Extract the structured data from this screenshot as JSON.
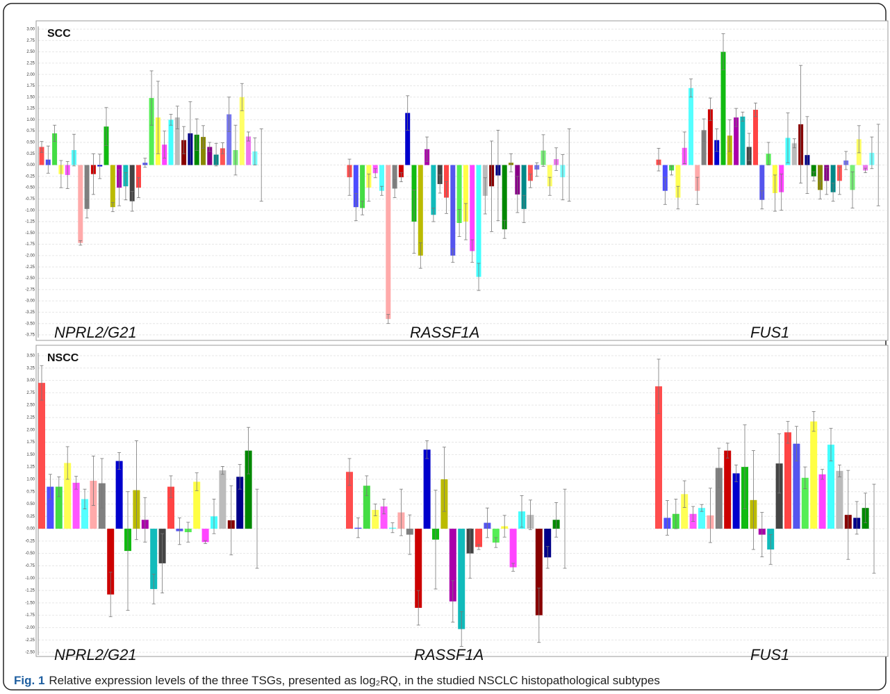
{
  "chart_data": [
    {
      "type": "bar",
      "panel_label": "SCC",
      "grid": true,
      "ylim": [
        -3.75,
        3.0
      ],
      "yticks": [
        {
          "value": 3.0,
          "label": "3.00"
        },
        {
          "value": 2.75,
          "label": "2.75"
        },
        {
          "value": 2.5,
          "label": "2.50"
        },
        {
          "value": 2.25,
          "label": "2.25"
        },
        {
          "value": 2.0,
          "label": "2.00"
        },
        {
          "value": 1.75,
          "label": "1.75"
        },
        {
          "value": 1.5,
          "label": "1.50"
        },
        {
          "value": 1.25,
          "label": "1.25"
        },
        {
          "value": 1.0,
          "label": "1.00"
        },
        {
          "value": 0.75,
          "label": "0.75"
        },
        {
          "value": 0.5,
          "label": "0.50"
        },
        {
          "value": 0.25,
          "label": "0.25"
        },
        {
          "value": 0,
          "label": "0.00"
        },
        {
          "value": -0.25,
          "label": "-0.25"
        },
        {
          "value": -0.5,
          "label": "-0.50"
        },
        {
          "value": -0.75,
          "label": "-0.75"
        },
        {
          "value": -1.0,
          "label": "-1.00"
        },
        {
          "value": -1.25,
          "label": "-1.25"
        },
        {
          "value": -1.5,
          "label": "-1.50"
        },
        {
          "value": -1.75,
          "label": "-1.75"
        },
        {
          "value": -2.0,
          "label": "-2.00"
        },
        {
          "value": -2.25,
          "label": "-2.25"
        },
        {
          "value": -2.5,
          "label": "-2.50"
        },
        {
          "value": -2.75,
          "label": "-2.75"
        },
        {
          "value": -3.0,
          "label": "-3.00"
        },
        {
          "value": -3.25,
          "label": "-3.25"
        },
        {
          "value": -3.5,
          "label": "-3.50"
        },
        {
          "value": -3.75,
          "label": "-3.75"
        }
      ],
      "colors": [
        "#ff4d4d",
        "#4d4dff",
        "#44dd44",
        "#ffff55",
        "#ff55ff",
        "#55ffff",
        "#ffaaaa",
        "#808080",
        "#cc0000",
        "#0000cc",
        "#11bb11",
        "#bbbb00",
        "#aa00aa",
        "#11bbbb",
        "#444444",
        "#ff4444",
        "#5555ee",
        "#55ee55",
        "#ffff44",
        "#ff44ff",
        "#44ffff",
        "#bbbbbb",
        "#880000",
        "#000088",
        "#008800",
        "#888800",
        "#880088",
        "#008888",
        "#ff5555",
        "#7777ee",
        "#77ee77",
        "#ffff66",
        "#ee77ee",
        "#77ffff",
        "#808080"
      ],
      "groups": [
        {
          "name": "NPRL2/G21",
          "values": [
            0.4,
            0.12,
            0.7,
            -0.2,
            -0.22,
            0.33,
            -1.72,
            -0.97,
            -0.2,
            -0.03,
            0.85,
            -0.93,
            -0.5,
            -0.47,
            -0.8,
            -0.5,
            0.05,
            1.48,
            1.05,
            0.45,
            1.0,
            1.05,
            0.55,
            0.7,
            0.67,
            0.62,
            0.4,
            0.23,
            0.37,
            1.12,
            0.33,
            1.5,
            0.63,
            0.3,
            0
          ],
          "errors": [
            0.12,
            0.3,
            0.18,
            0.3,
            0.3,
            0.35,
            0.05,
            0.2,
            0.45,
            0.27,
            0.42,
            0.1,
            0.4,
            0.3,
            0.22,
            0.22,
            0.1,
            0.6,
            0.8,
            0.3,
            0.12,
            0.25,
            0.3,
            0.7,
            0.35,
            0.25,
            0.1,
            0.25,
            0.12,
            0.38,
            0.55,
            0.3,
            0.1,
            0.3,
            0.8
          ]
        },
        {
          "name": "RASSF1A",
          "values": [
            -0.27,
            -0.93,
            -0.95,
            -0.5,
            -0.18,
            -0.57,
            -3.4,
            -0.52,
            -0.27,
            1.15,
            -1.25,
            -2.0,
            0.35,
            -1.1,
            -0.42,
            -0.72,
            -2.0,
            -1.28,
            -1.25,
            -1.9,
            -2.47,
            -0.68,
            -0.47,
            -0.23,
            -1.42,
            0.05,
            -0.65,
            -0.97,
            -0.35,
            -0.1,
            0.32,
            -0.47,
            0.13,
            -0.27,
            0
          ],
          "errors": [
            0.4,
            0.3,
            0.15,
            0.3,
            0.1,
            0.1,
            0.1,
            0.2,
            0.1,
            0.38,
            0.7,
            0.28,
            0.27,
            0.15,
            0.2,
            0.35,
            0.15,
            0.3,
            0.4,
            0.25,
            0.3,
            0.4,
            1.0,
            1.0,
            0.2,
            0.2,
            0.4,
            0.3,
            0.15,
            0.15,
            0.35,
            0.2,
            0.25,
            0.5,
            0.8
          ]
        },
        {
          "name": "FUS1",
          "values": [
            0.12,
            -0.57,
            -0.12,
            -0.72,
            0.38,
            1.7,
            -0.57,
            0.77,
            1.23,
            0.55,
            2.5,
            0.65,
            1.05,
            1.07,
            0.4,
            1.22,
            -0.77,
            0.25,
            -0.62,
            -0.6,
            0.6,
            0.48,
            0.9,
            0.22,
            -0.25,
            -0.55,
            -0.35,
            -0.6,
            -0.35,
            0.1,
            -0.55,
            0.57,
            -0.12,
            0.27,
            0
          ],
          "errors": [
            0.25,
            0.3,
            0.1,
            0.25,
            0.35,
            0.2,
            0.3,
            0.25,
            0.25,
            0.25,
            0.4,
            0.35,
            0.2,
            0.1,
            0.3,
            0.15,
            0.2,
            0.25,
            0.4,
            0.4,
            0.55,
            0.1,
            1.3,
            0.85,
            0.1,
            0.2,
            0.3,
            0.2,
            0.3,
            0.2,
            0.4,
            0.3,
            0.05,
            0.35,
            0.9
          ]
        }
      ]
    },
    {
      "type": "bar",
      "panel_label": "NSCC",
      "grid": true,
      "ylim": [
        -2.5,
        3.5
      ],
      "yticks": [
        {
          "value": 3.5,
          "label": "3.50"
        },
        {
          "value": 3.25,
          "label": "3.25"
        },
        {
          "value": 3.0,
          "label": "3.00"
        },
        {
          "value": 2.75,
          "label": "2.75"
        },
        {
          "value": 2.5,
          "label": "2.50"
        },
        {
          "value": 2.25,
          "label": "2.25"
        },
        {
          "value": 2.0,
          "label": "2.00"
        },
        {
          "value": 1.75,
          "label": "1.75"
        },
        {
          "value": 1.5,
          "label": "1.50"
        },
        {
          "value": 1.25,
          "label": "1.25"
        },
        {
          "value": 1.0,
          "label": "1.00"
        },
        {
          "value": 0.75,
          "label": "0.75"
        },
        {
          "value": 0.5,
          "label": "0.50"
        },
        {
          "value": 0.25,
          "label": "0.25"
        },
        {
          "value": 0,
          "label": "0.00"
        },
        {
          "value": -0.25,
          "label": "-0.25"
        },
        {
          "value": -0.5,
          "label": "-0.50"
        },
        {
          "value": -0.75,
          "label": "-0.75"
        },
        {
          "value": -1.0,
          "label": "-1.00"
        },
        {
          "value": -1.25,
          "label": "-1.25"
        },
        {
          "value": -1.5,
          "label": "-1.50"
        },
        {
          "value": -1.75,
          "label": "-1.75"
        },
        {
          "value": -2.0,
          "label": "-2.00"
        },
        {
          "value": -2.25,
          "label": "-2.25"
        },
        {
          "value": -2.5,
          "label": "-2.50"
        }
      ],
      "colors": [
        "#ff4d4d",
        "#4d4dff",
        "#44dd44",
        "#ffff55",
        "#ff55ff",
        "#55ffff",
        "#ffaaaa",
        "#808080",
        "#cc0000",
        "#0000cc",
        "#11bb11",
        "#bbbb00",
        "#aa00aa",
        "#11bbbb",
        "#444444",
        "#ff4444",
        "#5555ee",
        "#55ee55",
        "#ffff44",
        "#ff44ff",
        "#44ffff",
        "#bbbbbb",
        "#880000",
        "#000088",
        "#008800",
        "#808080"
      ],
      "groups": [
        {
          "name": "NPRL2/G21",
          "values": [
            2.95,
            0.85,
            0.85,
            1.33,
            0.93,
            0.6,
            0.97,
            0.92,
            -1.33,
            1.37,
            -0.45,
            0.78,
            0.18,
            -1.22,
            -0.7,
            0.85,
            -0.05,
            -0.07,
            0.95,
            -0.27,
            0.25,
            1.18,
            0.17,
            1.05,
            1.58,
            0
          ],
          "errors": [
            0.35,
            0.25,
            0.2,
            0.33,
            0.13,
            0.2,
            0.5,
            0.5,
            0.45,
            0.17,
            1.2,
            1.0,
            0.45,
            0.3,
            0.6,
            0.22,
            0.27,
            0.2,
            0.18,
            0.03,
            0.35,
            0.08,
            0.7,
            0.25,
            0.47,
            0.8
          ]
        },
        {
          "name": "RASSF1A",
          "values": [
            1.15,
            0.02,
            0.87,
            0.38,
            0.45,
            0.02,
            0.33,
            -0.12,
            -1.6,
            1.6,
            -0.22,
            1.0,
            -1.47,
            -2.03,
            -0.5,
            -0.37,
            0.12,
            -0.28,
            0.05,
            -0.78,
            0.35,
            0.28,
            -1.75,
            -0.58,
            0.18,
            0
          ],
          "errors": [
            0.27,
            0.2,
            0.2,
            0.12,
            0.15,
            0.1,
            0.47,
            0.4,
            0.35,
            0.18,
            1.0,
            0.65,
            0.42,
            0.35,
            0.5,
            0.05,
            0.3,
            0.1,
            0.22,
            0.08,
            0.32,
            0.3,
            0.55,
            0.22,
            0.35,
            0.8
          ]
        },
        {
          "name": "FUS1",
          "values": [
            2.88,
            0.22,
            0.3,
            0.7,
            0.3,
            0.42,
            0.27,
            1.23,
            1.58,
            1.12,
            1.25,
            0.58,
            -0.12,
            -0.42,
            1.32,
            1.95,
            1.72,
            1.03,
            2.17,
            1.1,
            1.7,
            1.17,
            0.28,
            0.22,
            0.42,
            0
          ],
          "errors": [
            0.55,
            0.35,
            0.3,
            0.27,
            0.15,
            0.07,
            0.55,
            0.4,
            0.15,
            0.17,
            0.85,
            1.0,
            0.45,
            0.3,
            0.6,
            0.22,
            0.35,
            0.22,
            0.2,
            0.1,
            0.33,
            0.12,
            0.9,
            0.33,
            0.3,
            0.9
          ]
        }
      ]
    }
  ],
  "caption": {
    "label": "Fig. 1",
    "text": "Relative expression levels of the three TSGs, presented as log₂RQ, in the studied NSCLC histopathological subtypes"
  }
}
